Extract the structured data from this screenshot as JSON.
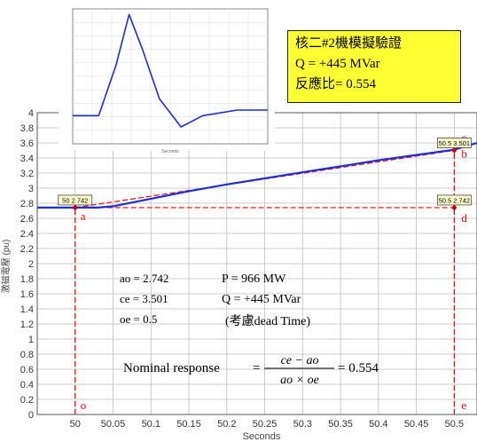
{
  "chart_data": [
    {
      "type": "line",
      "xlabel": "Seconds",
      "ylabel": "激磁電壓 (pu)",
      "xlim": [
        49.95,
        50.53
      ],
      "ylim": [
        0,
        4
      ],
      "x_ticks": [
        "50",
        "50.05",
        "50.1",
        "50.15",
        "50.2",
        "50.25",
        "50.3",
        "50.35",
        "50.4",
        "50.45",
        "50.5"
      ],
      "y_ticks": [
        "0",
        "0.2",
        "0.4",
        "0.6",
        "0.8",
        "1",
        "1.2",
        "1.4",
        "1.6",
        "1.8",
        "2",
        "2.2",
        "2.4",
        "2.6",
        "2.8",
        "3",
        "3.2",
        "3.4",
        "3.6",
        "3.8",
        "4"
      ],
      "grid": true,
      "series": [
        {
          "color": "#1a2fd6",
          "x": [
            49.95,
            50.0,
            50.03,
            50.05,
            50.1,
            50.15,
            50.2,
            50.25,
            50.3,
            50.35,
            50.4,
            50.45,
            50.5,
            50.53
          ],
          "y": [
            2.742,
            2.742,
            2.742,
            2.76,
            2.86,
            2.96,
            3.05,
            3.13,
            3.21,
            3.29,
            3.37,
            3.44,
            3.51,
            3.6
          ]
        }
      ],
      "reference_lines": [
        {
          "from": [
            50.0,
            2.742
          ],
          "to": [
            50.5,
            3.501
          ],
          "color": "#ff0000"
        },
        {
          "from": [
            50.0,
            2.742
          ],
          "to": [
            50.5,
            2.742
          ],
          "color": "#ff0000"
        },
        {
          "from": [
            50.0,
            0
          ],
          "to": [
            50.0,
            2.742
          ],
          "color": "#ff0000"
        },
        {
          "from": [
            50.5,
            0
          ],
          "to": [
            50.5,
            3.501
          ],
          "color": "#ff0000"
        }
      ],
      "point_labels": [
        {
          "label": "a",
          "x": 50.0,
          "y": 2.742
        },
        {
          "label": "b",
          "x": 50.5,
          "y": 3.501
        },
        {
          "label": "c",
          "x": 50.5,
          "y": 3.501
        },
        {
          "label": "d",
          "x": 50.5,
          "y": 2.742
        },
        {
          "label": "e",
          "x": 50.5,
          "y": 0
        },
        {
          "label": "o",
          "x": 50.0,
          "y": 0
        }
      ],
      "data_labels": [
        {
          "text": "50 2.742",
          "x": 50.0,
          "y": 2.742
        },
        {
          "text": "50.5 3.501",
          "x": 50.5,
          "y": 3.501
        },
        {
          "text": "50.5 2.742",
          "x": 50.5,
          "y": 2.742
        }
      ],
      "annotations": {
        "ao": "ao = 2.742",
        "ce": "ce = 3.501",
        "oe": "oe = 0.5",
        "power": "P = 966 MW",
        "reactive": "Q = +445 MVar",
        "dead_time": "(考慮dead Time)",
        "formula_prefix": "Nominal response",
        "formula_numerator": "ce − ao",
        "formula_denominator": "ao × oe",
        "formula_result": "= 0.554"
      }
    },
    {
      "type": "line",
      "xlabel": "Seconds",
      "series": [
        {
          "color": "#1a2fd6",
          "x": [
            0,
            0.06,
            0.1,
            0.13,
            0.16,
            0.2,
            0.25,
            0.3,
            0.38,
            0.45
          ],
          "y": [
            0.1,
            0.1,
            0.55,
            1.0,
            0.7,
            0.25,
            0.0,
            0.1,
            0.15,
            0.15
          ]
        }
      ]
    }
  ],
  "note": {
    "line1": "核二#2機模擬驗證",
    "line2": "Q = +445 MVar",
    "line3": "反應比= 0.554"
  },
  "colors": {
    "series": "#1a2fd6",
    "reference": "#ff0000",
    "note_bg": "#ffff33"
  }
}
